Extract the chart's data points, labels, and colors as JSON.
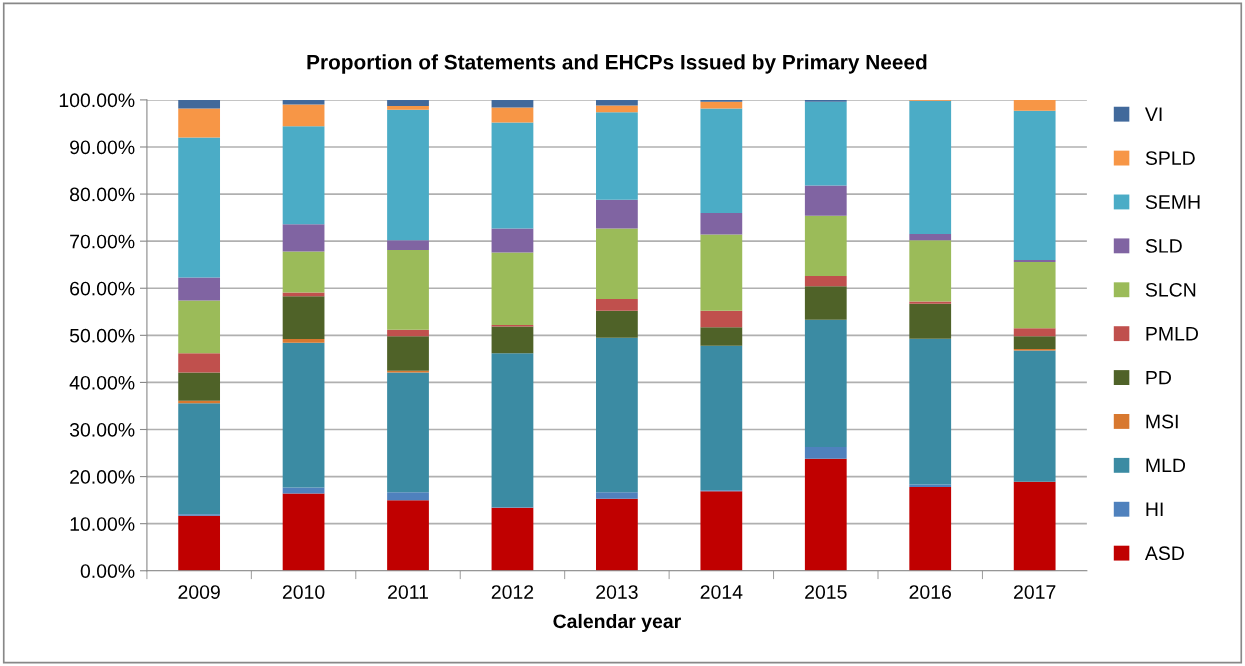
{
  "chart_data": {
    "type": "bar",
    "stacked": true,
    "title": "Proportion of Statements and EHCPs Issued by Primary Neeed",
    "xlabel": "Calendar year",
    "categories": [
      "2009",
      "2010",
      "2011",
      "2012",
      "2013",
      "2014",
      "2015",
      "2016",
      "2017"
    ],
    "series": [
      {
        "name": "ASD",
        "color": "#c00000",
        "values": [
          11.7,
          16.4,
          15.0,
          13.4,
          15.3,
          16.9,
          23.8,
          17.8,
          18.9
        ]
      },
      {
        "name": "HI",
        "color": "#4f81bd",
        "values": [
          0.3,
          1.3,
          1.7,
          0.1,
          1.4,
          0.2,
          2.5,
          0.5,
          0
        ]
      },
      {
        "name": "MLD",
        "color": "#3b8ba3",
        "values": [
          23.6,
          30.7,
          25.4,
          32.7,
          32.8,
          30.7,
          27.0,
          31.0,
          27.9
        ]
      },
      {
        "name": "MSI",
        "color": "#d8782f",
        "values": [
          0.5,
          0.8,
          0.4,
          0,
          0,
          0,
          0,
          0,
          0.3
        ]
      },
      {
        "name": "PD",
        "color": "#4f6228",
        "values": [
          6.0,
          9.1,
          7.3,
          5.7,
          5.7,
          3.9,
          7.1,
          7.4,
          2.7
        ]
      },
      {
        "name": "PMLD",
        "color": "#c0504d",
        "values": [
          4.1,
          0.8,
          1.4,
          0.3,
          2.5,
          3.5,
          2.2,
          0.5,
          1.7
        ]
      },
      {
        "name": "SLCN",
        "color": "#9bbb59",
        "values": [
          11.2,
          8.7,
          16.9,
          15.4,
          15.0,
          16.2,
          12.8,
          13.0,
          14.1
        ]
      },
      {
        "name": "SLD",
        "color": "#8064a2",
        "values": [
          4.9,
          5.8,
          2.1,
          5.1,
          6.1,
          4.6,
          6.4,
          1.3,
          0.4
        ]
      },
      {
        "name": "SEMH",
        "color": "#4bacc6",
        "values": [
          29.7,
          20.8,
          27.7,
          22.5,
          18.6,
          22.2,
          17.8,
          28.3,
          31.7
        ]
      },
      {
        "name": "SPLD",
        "color": "#f79646",
        "values": [
          6.2,
          4.6,
          0.8,
          3.2,
          1.4,
          1.4,
          0,
          0.2,
          2.3
        ]
      },
      {
        "name": "VI",
        "color": "#41699b",
        "values": [
          1.8,
          1.0,
          1.3,
          1.6,
          1.2,
          0.4,
          0.4,
          0,
          0
        ]
      }
    ],
    "ylim": [
      0,
      100
    ],
    "yticks": [
      {
        "value": 0,
        "label": "0.00%"
      },
      {
        "value": 10,
        "label": "10.00%"
      },
      {
        "value": 20,
        "label": "20.00%"
      },
      {
        "value": 30,
        "label": "30.00%"
      },
      {
        "value": 40,
        "label": "40.00%"
      },
      {
        "value": 50,
        "label": "50.00%"
      },
      {
        "value": 60,
        "label": "60.00%"
      },
      {
        "value": 70,
        "label": "70.00%"
      },
      {
        "value": 80,
        "label": "80.00%"
      },
      {
        "value": 90,
        "label": "90.00%"
      },
      {
        "value": 100,
        "label": "100.00%"
      }
    ],
    "grid": "y",
    "legend": "right"
  }
}
